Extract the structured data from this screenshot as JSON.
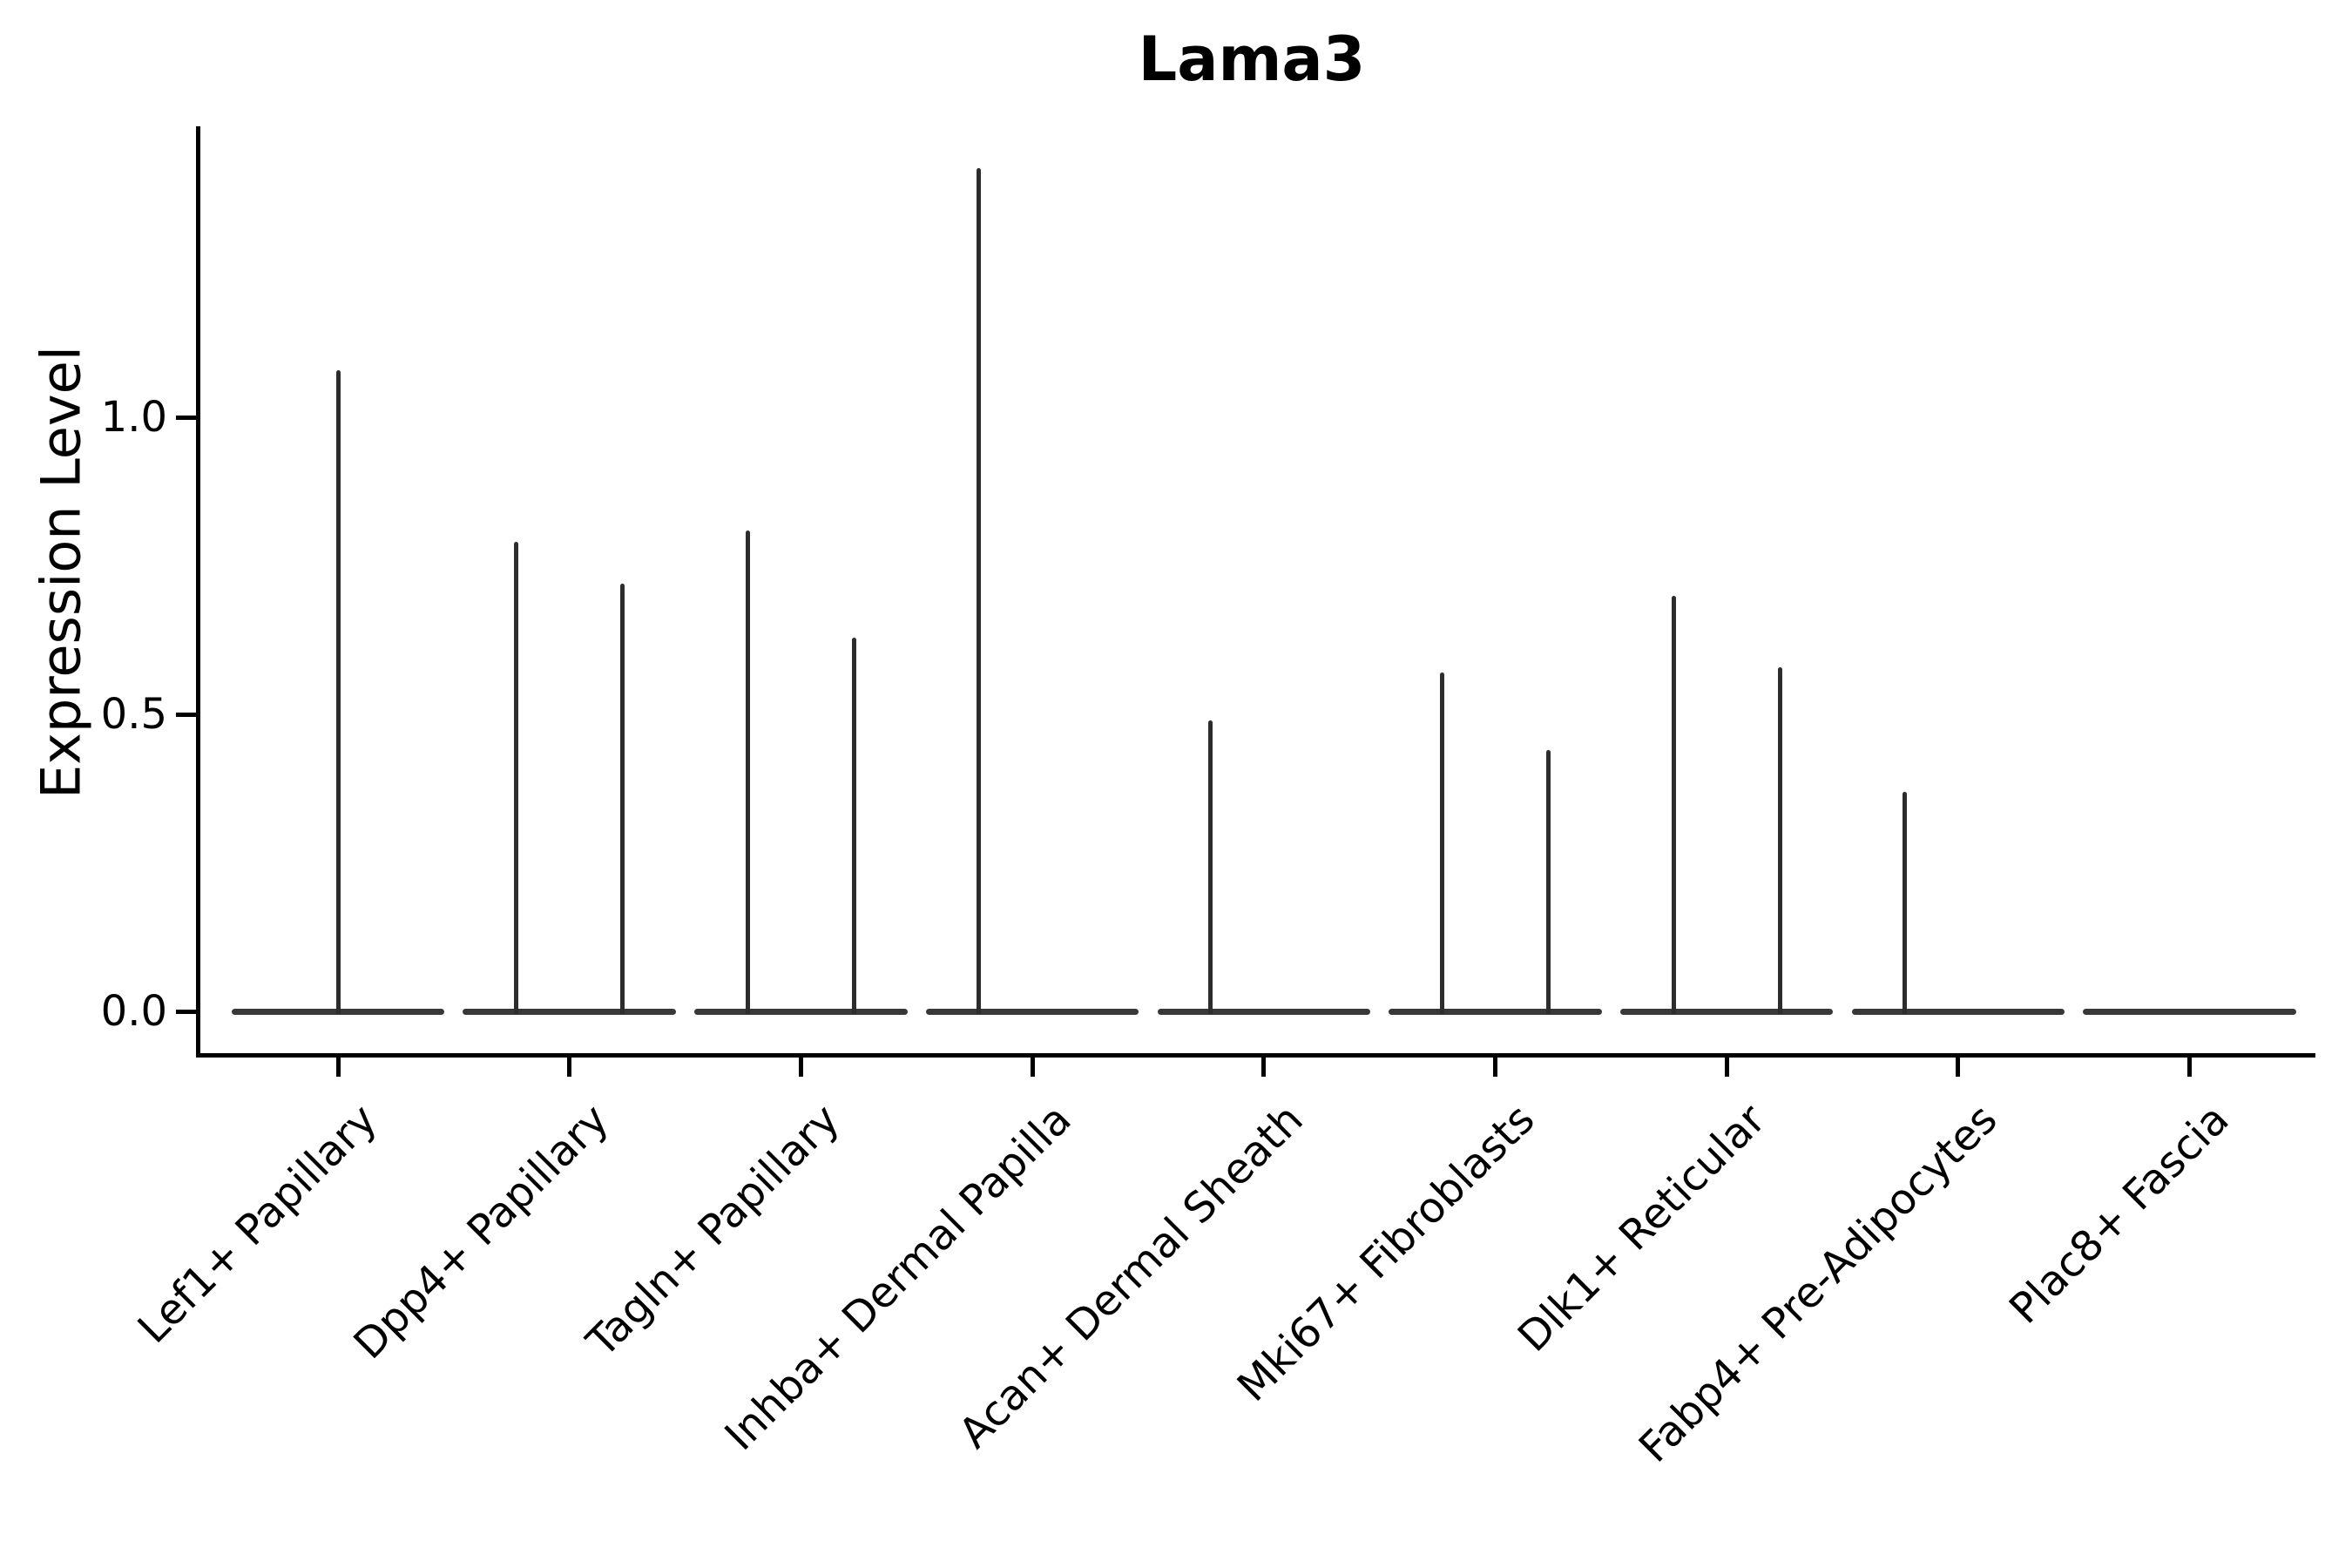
{
  "chart_data": {
    "type": "violin",
    "title": "Lama3",
    "ylabel": "Expression Level",
    "xlabel": "",
    "yticks": [
      0.0,
      0.5,
      1.0
    ],
    "ylim": [
      -0.07,
      1.49
    ],
    "grid": false,
    "legend": "none",
    "colors": {
      "ink": "#000000",
      "violin_body": "#383838",
      "violin_spike": "#2d2d2d",
      "background": "#ffffff"
    },
    "categories": [
      "Lef1+ Papillary",
      "Dpp4+ Papillary",
      "Tagln+ Papillary",
      "Inhba+ Dermal Papilla",
      "Acan+ Dermal Sheath",
      "Mki67+ Fibroblasts",
      "Dlk1+ Reticular",
      "Fabp4+ Pre-Adipocytes",
      "Plac8+ Fascia"
    ],
    "violin_note": "Each violin is flat at expression 0 with a thin density spike rising to its maximum; offsets are fractions of category spacing (two dodged violins per category where two spikes are visible).",
    "base_halfwidth_frac": 0.46,
    "violins": [
      {
        "category_index": 0,
        "spikes": [
          {
            "offset": 0.0,
            "max": 1.08
          }
        ]
      },
      {
        "category_index": 1,
        "spikes": [
          {
            "offset": -0.23,
            "max": 0.79
          },
          {
            "offset": 0.23,
            "max": 0.72
          }
        ]
      },
      {
        "category_index": 2,
        "spikes": [
          {
            "offset": -0.23,
            "max": 0.81
          },
          {
            "offset": 0.23,
            "max": 0.63
          }
        ]
      },
      {
        "category_index": 3,
        "spikes": [
          {
            "offset": -0.23,
            "max": 1.42
          }
        ]
      },
      {
        "category_index": 4,
        "spikes": [
          {
            "offset": -0.23,
            "max": 0.49
          }
        ]
      },
      {
        "category_index": 5,
        "spikes": [
          {
            "offset": -0.23,
            "max": 0.57
          },
          {
            "offset": 0.23,
            "max": 0.44
          }
        ]
      },
      {
        "category_index": 6,
        "spikes": [
          {
            "offset": -0.23,
            "max": 0.7
          },
          {
            "offset": 0.23,
            "max": 0.58
          }
        ]
      },
      {
        "category_index": 7,
        "spikes": [
          {
            "offset": -0.23,
            "max": 0.37
          }
        ]
      },
      {
        "category_index": 8,
        "spikes": []
      }
    ]
  }
}
